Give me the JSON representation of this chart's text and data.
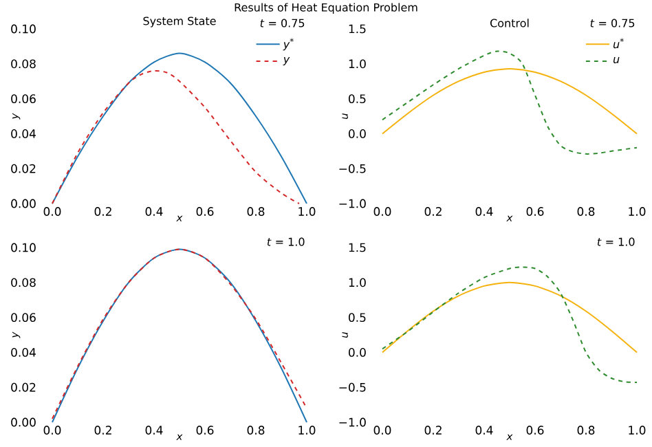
{
  "chart_data": [
    {
      "type": "line",
      "title": "System State",
      "subtitle": "*t* = 0.75",
      "xlabel": "x",
      "ylabel": "y",
      "annotations": [
        "Results of Heat Equation Problem"
      ],
      "xlim": [
        0,
        1
      ],
      "ylim": [
        0,
        0.1
      ],
      "xticks": [
        {
          "value": 0,
          "label": "0.0"
        },
        {
          "value": 0.2,
          "label": "0.2"
        },
        {
          "value": 0.4,
          "label": "0.4"
        },
        {
          "value": 0.6,
          "label": "0.6"
        },
        {
          "value": 0.8,
          "label": "0.8"
        },
        {
          "value": 1,
          "label": "1.0"
        }
      ],
      "yticks": [
        {
          "value": 0,
          "label": "0.00"
        },
        {
          "value": 0.02,
          "label": "0.02"
        },
        {
          "value": 0.04,
          "label": "0.04"
        },
        {
          "value": 0.06,
          "label": "0.06"
        },
        {
          "value": 0.08,
          "label": "0.08"
        },
        {
          "value": 0.1,
          "label": "0.10"
        }
      ],
      "legend": "top right",
      "series": [
        {
          "name": "y$^{*}$",
          "color": "#1f77b4",
          "line_style": "solid",
          "x": [
            0,
            0.1,
            0.2,
            0.3,
            0.4,
            0.5,
            0.6,
            0.7,
            0.8,
            0.9,
            1.0
          ],
          "values": [
            0,
            0.027,
            0.05,
            0.069,
            0.081,
            0.086,
            0.081,
            0.069,
            0.05,
            0.027,
            0
          ]
        },
        {
          "name": "y",
          "color": "#d62728",
          "line_style": "dashed",
          "x": [
            0,
            0.1,
            0.2,
            0.3,
            0.35,
            0.4,
            0.45,
            0.5,
            0.6,
            0.7,
            0.8,
            0.9,
            0.97
          ],
          "values": [
            0,
            0.029,
            0.052,
            0.069,
            0.074,
            0.076,
            0.075,
            0.07,
            0.055,
            0.036,
            0.018,
            0.006,
            0
          ]
        }
      ]
    },
    {
      "type": "line",
      "title": "Control",
      "subtitle": "*t* = 0.75",
      "xlabel": "x",
      "ylabel": "u",
      "xlim": [
        0,
        1
      ],
      "ylim": [
        -1,
        1.5
      ],
      "xticks": [
        {
          "value": 0,
          "label": "0.0"
        },
        {
          "value": 0.2,
          "label": "0.2"
        },
        {
          "value": 0.4,
          "label": "0.4"
        },
        {
          "value": 0.6,
          "label": "0.6"
        },
        {
          "value": 0.8,
          "label": "0.8"
        },
        {
          "value": 1,
          "label": "1.0"
        }
      ],
      "yticks": [
        {
          "value": -1,
          "label": "−1.0"
        },
        {
          "value": -0.5,
          "label": "−0.5"
        },
        {
          "value": 0,
          "label": "0.0"
        },
        {
          "value": 0.5,
          "label": "0.5"
        },
        {
          "value": 1,
          "label": "1.0"
        },
        {
          "value": 1.5,
          "label": "1.5"
        }
      ],
      "legend": "top right",
      "series": [
        {
          "name": "u$^{*}$",
          "color": "#f5b20c",
          "line_style": "solid",
          "x": [
            0,
            0.1,
            0.2,
            0.3,
            0.4,
            0.5,
            0.6,
            0.7,
            0.8,
            0.9,
            1.0
          ],
          "values": [
            0,
            0.29,
            0.55,
            0.75,
            0.88,
            0.93,
            0.88,
            0.75,
            0.55,
            0.29,
            0
          ]
        },
        {
          "name": "u",
          "color": "#2e8b2e",
          "line_style": "dashed",
          "x": [
            0,
            0.1,
            0.2,
            0.3,
            0.4,
            0.45,
            0.5,
            0.55,
            0.6,
            0.65,
            0.7,
            0.75,
            0.8,
            0.85,
            0.9,
            1.0
          ],
          "values": [
            0.2,
            0.45,
            0.7,
            0.93,
            1.12,
            1.18,
            1.15,
            1.0,
            0.55,
            0.1,
            -0.17,
            -0.26,
            -0.29,
            -0.28,
            -0.25,
            -0.2
          ]
        }
      ]
    },
    {
      "type": "line",
      "subtitle": "*t* = 1.0",
      "xlabel": "x",
      "ylabel": "y",
      "xlim": [
        0,
        1
      ],
      "ylim": [
        0,
        0.1
      ],
      "xticks": [
        {
          "value": 0,
          "label": "0.0"
        },
        {
          "value": 0.2,
          "label": "0.2"
        },
        {
          "value": 0.4,
          "label": "0.4"
        },
        {
          "value": 0.6,
          "label": "0.6"
        },
        {
          "value": 0.8,
          "label": "0.8"
        },
        {
          "value": 1,
          "label": "1.0"
        }
      ],
      "yticks": [
        {
          "value": 0,
          "label": "0.00"
        },
        {
          "value": 0.02,
          "label": "0.02"
        },
        {
          "value": 0.04,
          "label": "0.04"
        },
        {
          "value": 0.06,
          "label": "0.06"
        },
        {
          "value": 0.08,
          "label": "0.08"
        },
        {
          "value": 0.1,
          "label": "0.10"
        }
      ],
      "series": [
        {
          "color": "#1f77b4",
          "line_style": "solid",
          "x": [
            0,
            0.1,
            0.2,
            0.3,
            0.4,
            0.5,
            0.6,
            0.7,
            0.8,
            0.9,
            1.0
          ],
          "values": [
            0,
            0.031,
            0.058,
            0.08,
            0.094,
            0.099,
            0.094,
            0.08,
            0.058,
            0.031,
            0
          ]
        },
        {
          "color": "#d62728",
          "line_style": "dashed",
          "x": [
            0,
            0.1,
            0.2,
            0.3,
            0.4,
            0.5,
            0.6,
            0.7,
            0.8,
            0.9,
            1.0
          ],
          "values": [
            0.002,
            0.032,
            0.059,
            0.08,
            0.094,
            0.099,
            0.094,
            0.079,
            0.059,
            0.034,
            0.008
          ]
        }
      ]
    },
    {
      "type": "line",
      "subtitle": "*t* = 1.0",
      "xlabel": "x",
      "ylabel": "u",
      "xlim": [
        0,
        1
      ],
      "ylim": [
        -1,
        1.5
      ],
      "xticks": [
        {
          "value": 0,
          "label": "0.0"
        },
        {
          "value": 0.2,
          "label": "0.2"
        },
        {
          "value": 0.4,
          "label": "0.4"
        },
        {
          "value": 0.6,
          "label": "0.6"
        },
        {
          "value": 0.8,
          "label": "0.8"
        },
        {
          "value": 1,
          "label": "1.0"
        }
      ],
      "yticks": [
        {
          "value": -1,
          "label": "−1.0"
        },
        {
          "value": -0.5,
          "label": "−0.5"
        },
        {
          "value": 0,
          "label": "0.0"
        },
        {
          "value": 0.5,
          "label": "0.5"
        },
        {
          "value": 1,
          "label": "1.0"
        },
        {
          "value": 1.5,
          "label": "1.5"
        }
      ],
      "series": [
        {
          "color": "#f5b20c",
          "line_style": "solid",
          "x": [
            0,
            0.1,
            0.2,
            0.3,
            0.4,
            0.5,
            0.6,
            0.7,
            0.8,
            0.9,
            1.0
          ],
          "values": [
            0,
            0.31,
            0.59,
            0.81,
            0.95,
            1.0,
            0.95,
            0.81,
            0.59,
            0.31,
            0
          ]
        },
        {
          "color": "#2e8b2e",
          "line_style": "dashed",
          "x": [
            0,
            0.1,
            0.2,
            0.3,
            0.4,
            0.5,
            0.55,
            0.6,
            0.65,
            0.7,
            0.75,
            0.8,
            0.85,
            0.9,
            0.95,
            1.0
          ],
          "values": [
            0.05,
            0.3,
            0.58,
            0.85,
            1.07,
            1.2,
            1.22,
            1.2,
            1.08,
            0.85,
            0.45,
            0.0,
            -0.25,
            -0.37,
            -0.42,
            -0.43
          ]
        }
      ]
    }
  ]
}
